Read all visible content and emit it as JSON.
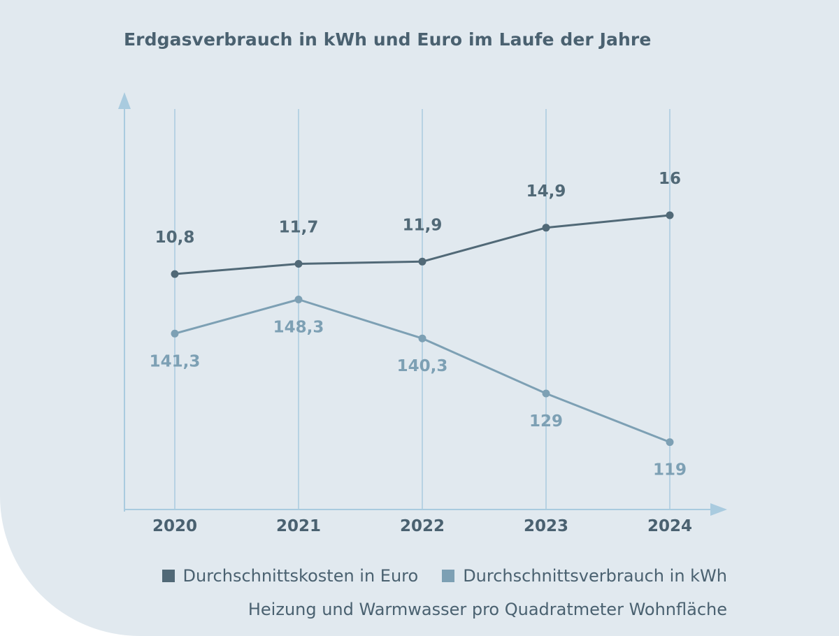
{
  "chart_data": {
    "type": "line",
    "title": "Erdgasverbrauch in kWh und Euro im Laufe der Jahre",
    "categories": [
      "2020",
      "2021",
      "2022",
      "2023",
      "2024"
    ],
    "series": [
      {
        "name": "Durchschnittskosten in Euro",
        "values": [
          10.8,
          11.7,
          11.9,
          14.9,
          16
        ],
        "labels": [
          "10,8",
          "11,7",
          "11,9",
          "14,9",
          "16"
        ],
        "color": "#516977",
        "unit": "Euro"
      },
      {
        "name": "Durchschnittsverbrauch in kWh",
        "values": [
          141.3,
          148.3,
          140.3,
          129,
          119
        ],
        "labels": [
          "141,3",
          "148,3",
          "140,3",
          "129",
          "119"
        ],
        "color": "#7da0b4",
        "unit": "kWh"
      }
    ],
    "note": "Heizung und Warmwasser pro Quadratmeter Wohnfläche",
    "grid": "vertical",
    "legend": "bottom-right",
    "axis_color": "#a9cbdf"
  }
}
